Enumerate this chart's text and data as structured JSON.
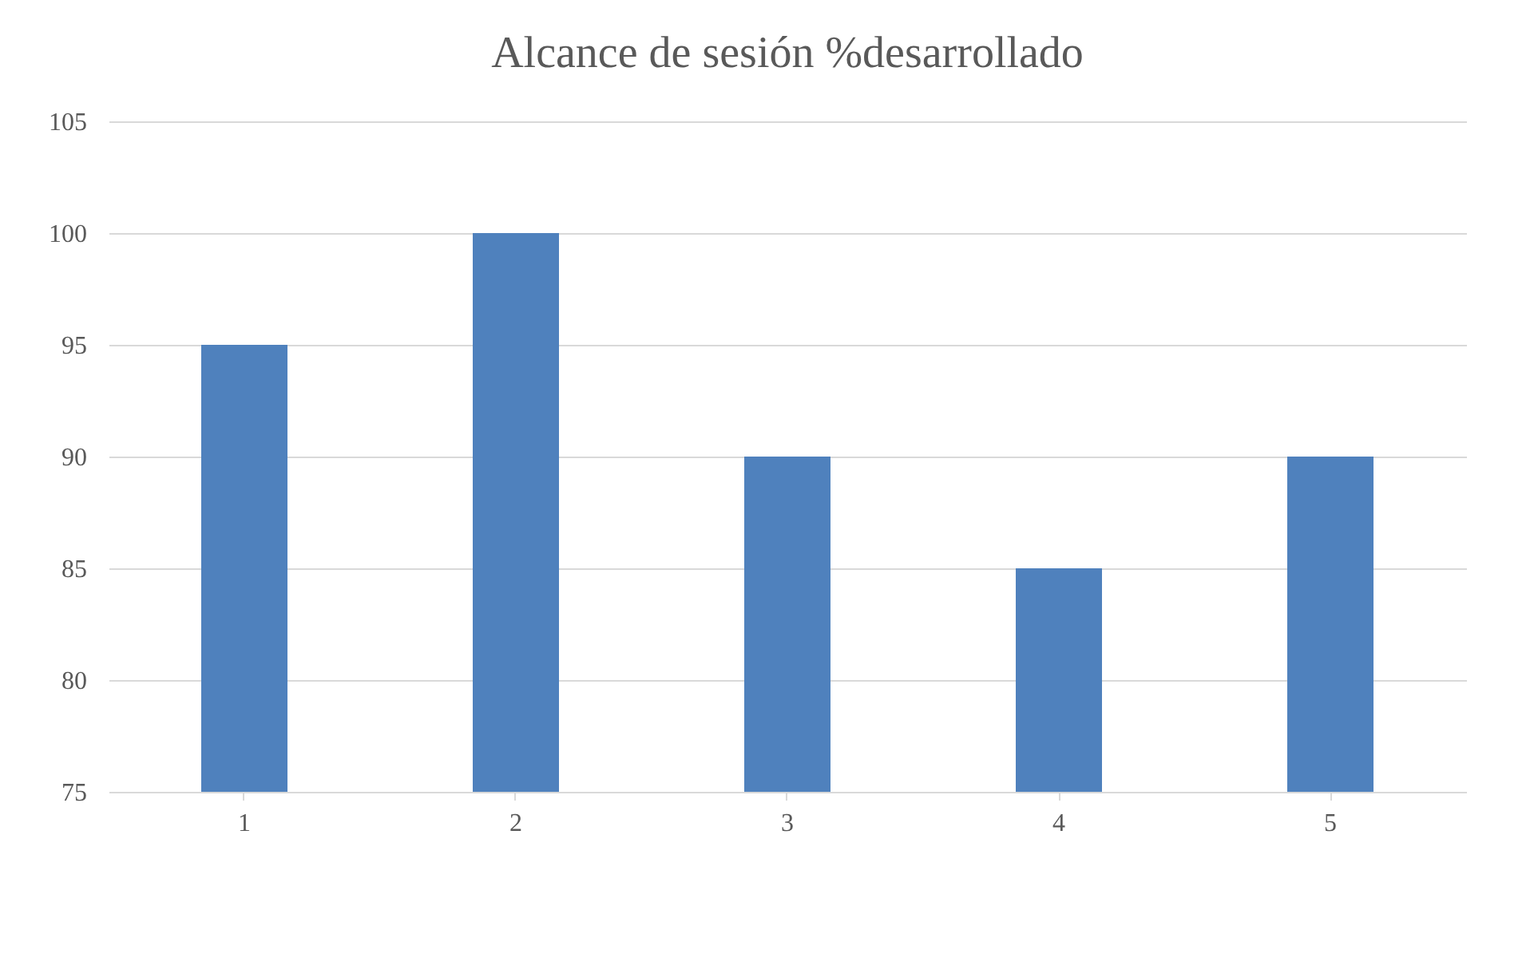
{
  "chart_data": {
    "type": "bar",
    "title": "Alcance de sesión  %desarrollado",
    "categories": [
      "1",
      "2",
      "3",
      "4",
      "5"
    ],
    "series": [
      {
        "color": "#4f81bd",
        "values": [
          95,
          100,
          90,
          85,
          90
        ]
      }
    ],
    "ylim": [
      75,
      105
    ],
    "yticks": [
      75,
      80,
      85,
      90,
      95,
      100,
      105
    ],
    "grid": "y",
    "legend": false
  }
}
